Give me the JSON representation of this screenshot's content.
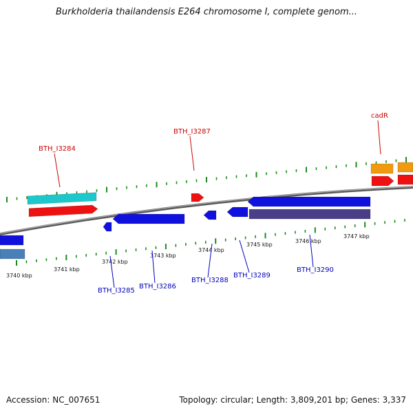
{
  "title": "Burkholderia thailandensis E264 chromosome I, complete genom...",
  "footer": {
    "accession": "Accession: NC_007651",
    "topology": "Topology: circular; Length: 3,809,201 bp; Genes: 3,337"
  },
  "colors": {
    "backbone": "#8a8a8a",
    "tick": "#1a8a1a",
    "label_red": "#cc0000",
    "label_blue": "#0000bb",
    "cyan": "#1cc8cc",
    "red": "#ee1111",
    "blue": "#1111dd",
    "purple": "#4a3e88",
    "orange": "#f09a10",
    "steelblue": "#4a80b8"
  },
  "scale_labels": [
    "3740 kbp",
    "3741 kbp",
    "3742 kbp",
    "3743 kbp",
    "3744 kbp",
    "3745 kbp",
    "3746 kbp",
    "3747 kbp"
  ],
  "gene_labels": [
    {
      "text": "BTH_I3284",
      "strand": "plus"
    },
    {
      "text": "BTH_I3287",
      "strand": "plus"
    },
    {
      "text": "cadR",
      "strand": "plus"
    },
    {
      "text": "BTH_I3285",
      "strand": "minus"
    },
    {
      "text": "BTH_I3286",
      "strand": "minus"
    },
    {
      "text": "BTH_I3288",
      "strand": "minus"
    },
    {
      "text": "BTH_I3289",
      "strand": "minus"
    },
    {
      "text": "BTH_I3290",
      "strand": "minus"
    }
  ]
}
